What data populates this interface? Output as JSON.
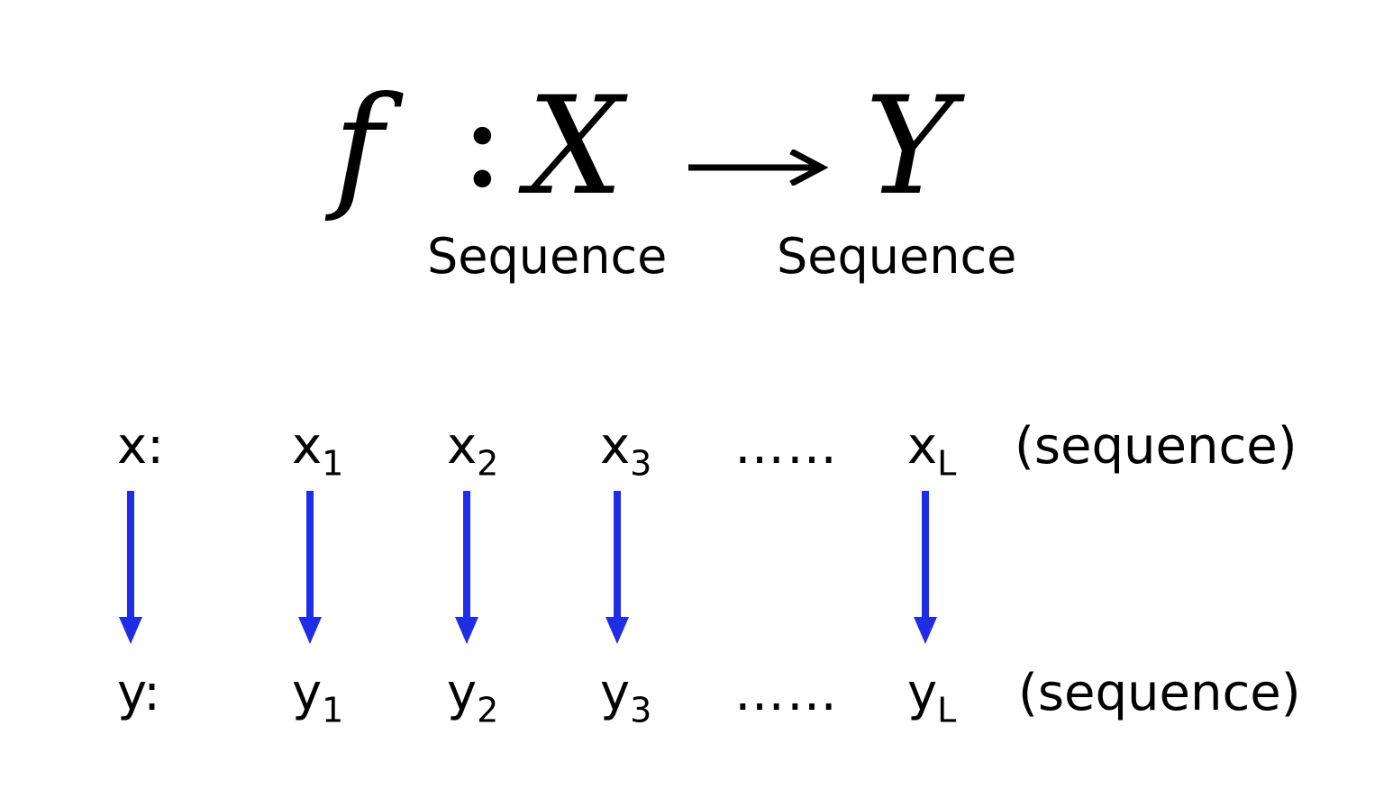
{
  "formula": {
    "function": "f",
    "colon": ":",
    "domain": "X",
    "codomain": "Y",
    "domain_label": "Sequence",
    "codomain_label": "Sequence"
  },
  "input_row": {
    "label": "x:",
    "tokens": [
      {
        "base": "x",
        "sub": "1"
      },
      {
        "base": "x",
        "sub": "2"
      },
      {
        "base": "x",
        "sub": "3"
      },
      {
        "base": "x",
        "sub": "L"
      }
    ],
    "ellipsis": "……",
    "note": "(sequence)"
  },
  "output_row": {
    "label": "y:",
    "tokens": [
      {
        "base": "y",
        "sub": "1"
      },
      {
        "base": "y",
        "sub": "2"
      },
      {
        "base": "y",
        "sub": "3"
      },
      {
        "base": "y",
        "sub": "L"
      }
    ],
    "ellipsis": "……",
    "note": "(sequence)"
  },
  "colors": {
    "arrow": "#1f2ee6",
    "text": "#000000"
  }
}
